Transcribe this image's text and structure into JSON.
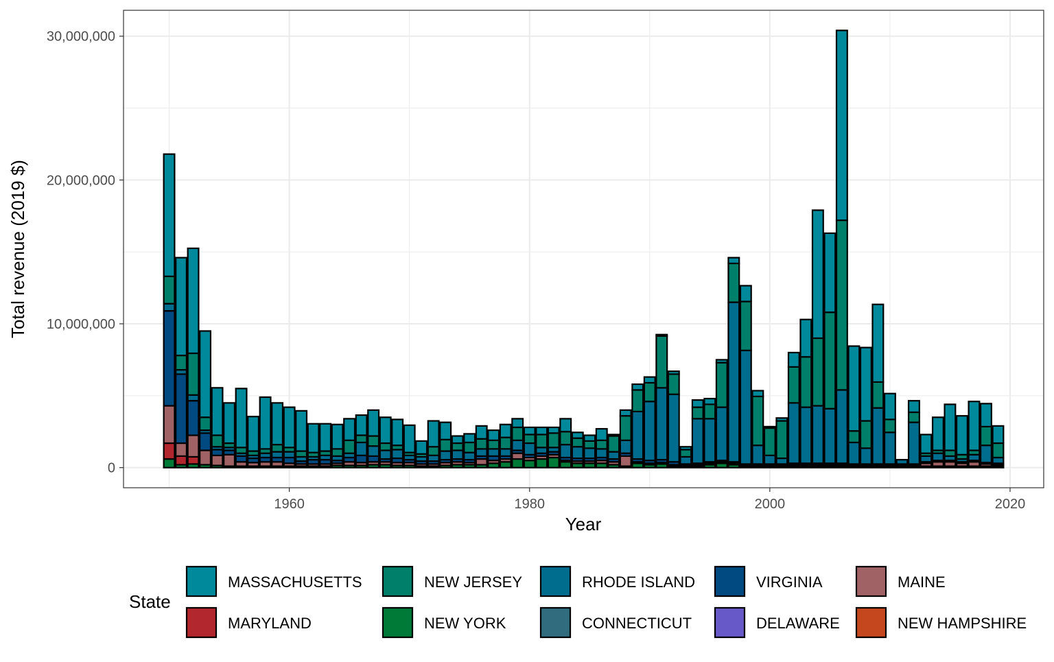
{
  "chart_data": {
    "type": "bar",
    "stacked": true,
    "xlabel": "Year",
    "ylabel": "Total revenue (2019 $)",
    "xlim": [
      1946.2,
      2022.8
    ],
    "ylim": [
      -1400000,
      31800000
    ],
    "x_ticks": [
      1960,
      1980,
      2000,
      2020
    ],
    "x_tick_labels": [
      "1960",
      "1980",
      "2000",
      "2020"
    ],
    "y_ticks": [
      0,
      10000000,
      20000000,
      30000000
    ],
    "y_tick_labels": [
      "0",
      "10,000,000",
      "20,000,000",
      "30,000,000"
    ],
    "grid": true,
    "legend": {
      "title": "State",
      "position": "bottom",
      "order": [
        "MASSACHUSETTS",
        "NEW JERSEY",
        "RHODE ISLAND",
        "VIRGINIA",
        "MAINE",
        "MARYLAND",
        "NEW YORK",
        "CONNECTICUT",
        "DELAWARE",
        "NEW HAMPSHIRE"
      ]
    },
    "colors": {
      "MASSACHUSETTS": "#00899b",
      "NEW JERSEY": "#00806a",
      "RHODE ISLAND": "#006c8e",
      "VIRGINIA": "#004a82",
      "MAINE": "#a16266",
      "MARYLAND": "#b2262d",
      "NEW YORK": "#007a37",
      "CONNECTICUT": "#306c7e",
      "DELAWARE": "#6759c7",
      "NEW HAMPSHIRE": "#c5471d"
    },
    "x": [
      1950,
      1951,
      1952,
      1953,
      1954,
      1955,
      1956,
      1957,
      1958,
      1959,
      1960,
      1961,
      1962,
      1963,
      1964,
      1965,
      1966,
      1967,
      1968,
      1969,
      1970,
      1971,
      1972,
      1973,
      1974,
      1975,
      1976,
      1977,
      1978,
      1979,
      1980,
      1981,
      1982,
      1983,
      1984,
      1985,
      1986,
      1987,
      1988,
      1989,
      1990,
      1991,
      1992,
      1993,
      1994,
      1995,
      1996,
      1997,
      1998,
      1999,
      2000,
      2001,
      2002,
      2003,
      2004,
      2005,
      2006,
      2007,
      2008,
      2009,
      2010,
      2011,
      2012,
      2013,
      2014,
      2015,
      2016,
      2017,
      2018,
      2019
    ],
    "stack_order": [
      "NEW HAMPSHIRE",
      "DELAWARE",
      "CONNECTICUT",
      "NEW YORK",
      "MARYLAND",
      "MAINE",
      "VIRGINIA",
      "RHODE ISLAND",
      "NEW JERSEY",
      "MASSACHUSETTS"
    ],
    "series": [
      {
        "name": "NEW HAMPSHIRE",
        "values": [
          0,
          0,
          0,
          0,
          0,
          0,
          0,
          0,
          0,
          0,
          0,
          0,
          0,
          0,
          0,
          0,
          0,
          0,
          0,
          0,
          0,
          0,
          0,
          0,
          0,
          0,
          0,
          0,
          0,
          0,
          0,
          0,
          0,
          0,
          0,
          0,
          0,
          0,
          0,
          0,
          0,
          0,
          0,
          0,
          0,
          0,
          0,
          0,
          0,
          0,
          0,
          0,
          0,
          0,
          0,
          0,
          0,
          0,
          0,
          0,
          0,
          0,
          0,
          0,
          0,
          0,
          0,
          0,
          0,
          0
        ]
      },
      {
        "name": "DELAWARE",
        "values": [
          0,
          0,
          0,
          0,
          0,
          0,
          0,
          0,
          0,
          0,
          0,
          0,
          0,
          0,
          0,
          0,
          0,
          0,
          0,
          0,
          0,
          0,
          0,
          0,
          0,
          0,
          0,
          0,
          0,
          0,
          0,
          0,
          0,
          0,
          0,
          0,
          0,
          0,
          0,
          0,
          0,
          0,
          0,
          0,
          0,
          0,
          0,
          0,
          0,
          0,
          0,
          0,
          0,
          0,
          0,
          0,
          0,
          0,
          0,
          0,
          0,
          0,
          0,
          0,
          0,
          0,
          0,
          0,
          0,
          0
        ]
      },
      {
        "name": "CONNECTICUT",
        "values": [
          0,
          0,
          0,
          0,
          0,
          0,
          0,
          0,
          0,
          0,
          0,
          0,
          0,
          0,
          0,
          0,
          0,
          0,
          0,
          0,
          0,
          0,
          0,
          0,
          0,
          0,
          0,
          0,
          0,
          0,
          0,
          0,
          0,
          0,
          0,
          0,
          0,
          0,
          0,
          0,
          0,
          0,
          0,
          0,
          0,
          0,
          0,
          0,
          0,
          0,
          0,
          0,
          0,
          0,
          0,
          0,
          0,
          0,
          0,
          0,
          0,
          0,
          0,
          0,
          0,
          0,
          0,
          0,
          0,
          0
        ]
      },
      {
        "name": "NEW YORK",
        "values": [
          600000,
          200000,
          250000,
          200000,
          150000,
          100000,
          100000,
          100000,
          100000,
          100000,
          100000,
          100000,
          100000,
          100000,
          150000,
          150000,
          150000,
          200000,
          200000,
          150000,
          150000,
          100000,
          100000,
          150000,
          200000,
          200000,
          200000,
          300000,
          400000,
          600000,
          500000,
          600000,
          700000,
          400000,
          300000,
          300000,
          300000,
          200000,
          100000,
          300000,
          200000,
          250000,
          100000,
          100000,
          100000,
          200000,
          300000,
          200000,
          100000,
          100000,
          100000,
          100000,
          100000,
          100000,
          100000,
          100000,
          100000,
          100000,
          100000,
          100000,
          100000,
          100000,
          100000,
          100000,
          100000,
          100000,
          100000,
          100000,
          100000,
          100000
        ]
      },
      {
        "name": "MARYLAND",
        "values": [
          1100000,
          600000,
          500000,
          0,
          0,
          0,
          0,
          0,
          0,
          0,
          0,
          0,
          0,
          0,
          0,
          0,
          0,
          0,
          0,
          0,
          0,
          0,
          0,
          0,
          0,
          0,
          0,
          0,
          0,
          0,
          0,
          0,
          0,
          0,
          0,
          0,
          0,
          0,
          0,
          0,
          0,
          0,
          0,
          0,
          0,
          0,
          0,
          0,
          0,
          0,
          0,
          0,
          0,
          0,
          0,
          0,
          0,
          0,
          0,
          0,
          0,
          0,
          0,
          0,
          0,
          0,
          0,
          0,
          0,
          0
        ]
      },
      {
        "name": "MAINE",
        "values": [
          2600000,
          900000,
          1500000,
          1000000,
          700000,
          800000,
          300000,
          250000,
          300000,
          300000,
          200000,
          150000,
          150000,
          150000,
          150000,
          250000,
          200000,
          200000,
          200000,
          200000,
          200000,
          150000,
          150000,
          200000,
          200000,
          150000,
          400000,
          200000,
          200000,
          400000,
          200000,
          200000,
          200000,
          100000,
          150000,
          150000,
          200000,
          200000,
          700000,
          100000,
          100000,
          100000,
          100000,
          50000,
          100000,
          100000,
          100000,
          100000,
          50000,
          50000,
          50000,
          50000,
          100000,
          100000,
          100000,
          100000,
          100000,
          50000,
          50000,
          50000,
          50000,
          50000,
          50000,
          200000,
          300000,
          300000,
          200000,
          300000,
          150000,
          100000
        ]
      },
      {
        "name": "VIRGINIA",
        "values": [
          6600000,
          4800000,
          2400000,
          1200000,
          400000,
          300000,
          400000,
          300000,
          300000,
          300000,
          400000,
          200000,
          300000,
          300000,
          200000,
          300000,
          500000,
          400000,
          200000,
          300000,
          200000,
          200000,
          200000,
          200000,
          200000,
          200000,
          200000,
          300000,
          200000,
          200000,
          200000,
          200000,
          200000,
          200000,
          200000,
          200000,
          200000,
          200000,
          200000,
          200000,
          200000,
          200000,
          200000,
          100000,
          100000,
          100000,
          100000,
          100000,
          100000,
          100000,
          100000,
          100000,
          100000,
          100000,
          100000,
          100000,
          100000,
          100000,
          100000,
          100000,
          100000,
          100000,
          100000,
          100000,
          100000,
          100000,
          100000,
          100000,
          100000,
          100000
        ]
      },
      {
        "name": "RHODE ISLAND",
        "values": [
          500000,
          300000,
          400000,
          200000,
          200000,
          200000,
          200000,
          200000,
          300000,
          400000,
          400000,
          300000,
          200000,
          300000,
          300000,
          300000,
          900000,
          700000,
          600000,
          600000,
          300000,
          300000,
          400000,
          600000,
          600000,
          500000,
          500000,
          500000,
          500000,
          700000,
          800000,
          400000,
          300000,
          900000,
          800000,
          700000,
          600000,
          500000,
          900000,
          3300000,
          4100000,
          5000000,
          4700000,
          500000,
          3100000,
          3000000,
          3700000,
          11100000,
          7900000,
          1300000,
          600000,
          400000,
          4200000,
          3900000,
          4000000,
          3800000,
          5100000,
          1500000,
          1100000,
          3900000,
          2200000,
          300000,
          2900000,
          400000,
          500000,
          300000,
          200000,
          400000,
          1200000,
          400000
        ]
      },
      {
        "name": "NEW JERSEY",
        "values": [
          1900000,
          1000000,
          2900000,
          900000,
          800000,
          300000,
          400000,
          300000,
          300000,
          500000,
          300000,
          400000,
          300000,
          300000,
          500000,
          900000,
          500000,
          700000,
          500000,
          300000,
          200000,
          200000,
          600000,
          800000,
          500000,
          700000,
          700000,
          600000,
          800000,
          900000,
          600000,
          900000,
          1000000,
          900000,
          600000,
          500000,
          600000,
          1100000,
          1700000,
          1500000,
          1300000,
          3600000,
          1400000,
          500000,
          800000,
          1000000,
          3100000,
          2700000,
          3400000,
          3400000,
          1900000,
          2600000,
          2500000,
          3500000,
          4700000,
          6700000,
          11800000,
          800000,
          1900000,
          1800000,
          900000,
          0,
          700000,
          200000,
          200000,
          400000,
          300000,
          300000,
          1300000,
          1000000
        ]
      },
      {
        "name": "MASSACHUSETTS",
        "values": [
          8500000,
          6800000,
          7300000,
          6000000,
          3300000,
          2800000,
          4100000,
          2400000,
          3600000,
          2900000,
          2800000,
          2800000,
          2000000,
          1900000,
          1700000,
          1500000,
          1400000,
          1800000,
          1800000,
          1800000,
          1900000,
          900000,
          1800000,
          1200000,
          500000,
          600000,
          900000,
          700000,
          900000,
          600000,
          500000,
          500000,
          400000,
          900000,
          400000,
          400000,
          800000,
          100000,
          400000,
          400000,
          400000,
          100000,
          200000,
          200000,
          500000,
          400000,
          200000,
          400000,
          1100000,
          400000,
          100000,
          200000,
          1000000,
          2600000,
          8900000,
          5500000,
          13200000,
          5900000,
          5100000,
          5400000,
          1800000,
          0,
          800000,
          1300000,
          2300000,
          3200000,
          2700000,
          3400000,
          1600000,
          1200000
        ]
      }
    ]
  }
}
